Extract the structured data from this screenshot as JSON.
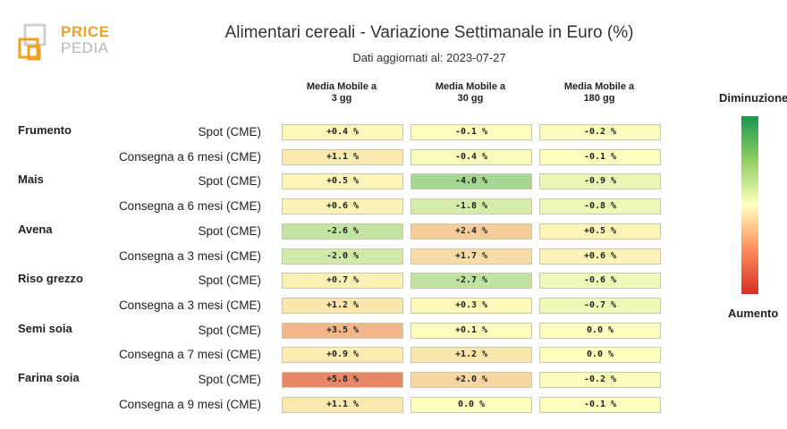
{
  "logo": {
    "line1": "PRICE",
    "line2": "PEDIA"
  },
  "title": "Alimentari cereali - Variazione Settimanale in Euro (%)",
  "subtitle": "Dati aggiornati al: 2023-07-27",
  "legend": {
    "top": "Diminuzione",
    "bottom": "Aumento"
  },
  "chart_data": {
    "type": "table",
    "columns": [
      {
        "line1": "Media Mobile a",
        "line2": "3 gg"
      },
      {
        "line1": "Media Mobile a",
        "line2": "30 gg"
      },
      {
        "line1": "Media Mobile a",
        "line2": "180 gg"
      }
    ],
    "groups": [
      {
        "name": "Frumento",
        "rows": [
          {
            "label": "Spot (CME)",
            "values": [
              0.4,
              -0.1,
              -0.2
            ],
            "display": [
              "+0.4 %",
              "-0.1 %",
              "-0.2 %"
            ]
          },
          {
            "label": "Consegna a 6 mesi (CME)",
            "values": [
              1.1,
              -0.4,
              -0.1
            ],
            "display": [
              "+1.1 %",
              "-0.4 %",
              "-0.1 %"
            ]
          }
        ]
      },
      {
        "name": "Mais",
        "rows": [
          {
            "label": "Spot (CME)",
            "values": [
              0.5,
              -4.0,
              -0.9
            ],
            "display": [
              "+0.5 %",
              "-4.0 %",
              "-0.9 %"
            ]
          },
          {
            "label": "Consegna a 6 mesi (CME)",
            "values": [
              0.6,
              -1.8,
              -0.8
            ],
            "display": [
              "+0.6 %",
              "-1.8 %",
              "-0.8 %"
            ]
          }
        ]
      },
      {
        "name": "Avena",
        "rows": [
          {
            "label": "Spot (CME)",
            "values": [
              -2.6,
              2.4,
              0.5
            ],
            "display": [
              "-2.6 %",
              "+2.4 %",
              "+0.5 %"
            ]
          },
          {
            "label": "Consegna a 3 mesi (CME)",
            "values": [
              -2.0,
              1.7,
              0.6
            ],
            "display": [
              "-2.0 %",
              "+1.7 %",
              "+0.6 %"
            ]
          }
        ]
      },
      {
        "name": "Riso grezzo",
        "rows": [
          {
            "label": "Spot (CME)",
            "values": [
              0.7,
              -2.7,
              -0.6
            ],
            "display": [
              "+0.7 %",
              "-2.7 %",
              "-0.6 %"
            ]
          },
          {
            "label": "Consegna a 3 mesi (CME)",
            "values": [
              1.2,
              0.3,
              -0.7
            ],
            "display": [
              "+1.2 %",
              "+0.3 %",
              "-0.7 %"
            ]
          }
        ]
      },
      {
        "name": "Semi soia",
        "rows": [
          {
            "label": "Spot (CME)",
            "values": [
              3.5,
              0.1,
              0.0
            ],
            "display": [
              "+3.5 %",
              "+0.1 %",
              "0.0 %"
            ]
          },
          {
            "label": "Consegna a 7 mesi (CME)",
            "values": [
              0.9,
              1.2,
              0.0
            ],
            "display": [
              "+0.9 %",
              "+1.2 %",
              "0.0 %"
            ]
          }
        ]
      },
      {
        "name": "Farina soia",
        "rows": [
          {
            "label": "Spot (CME)",
            "values": [
              5.8,
              2.0,
              -0.2
            ],
            "display": [
              "+5.8 %",
              "+2.0 %",
              "-0.2 %"
            ]
          },
          {
            "label": "Consegna a 9 mesi (CME)",
            "values": [
              1.1,
              0.0,
              -0.1
            ],
            "display": [
              "+1.1 %",
              "0.0 %",
              "-0.1 %"
            ]
          }
        ]
      }
    ],
    "color_scale": {
      "low_color": "#1a9850",
      "mid_color": "#ffffbf",
      "high_color": "#d73027",
      "range": [
        -10,
        10
      ]
    }
  }
}
